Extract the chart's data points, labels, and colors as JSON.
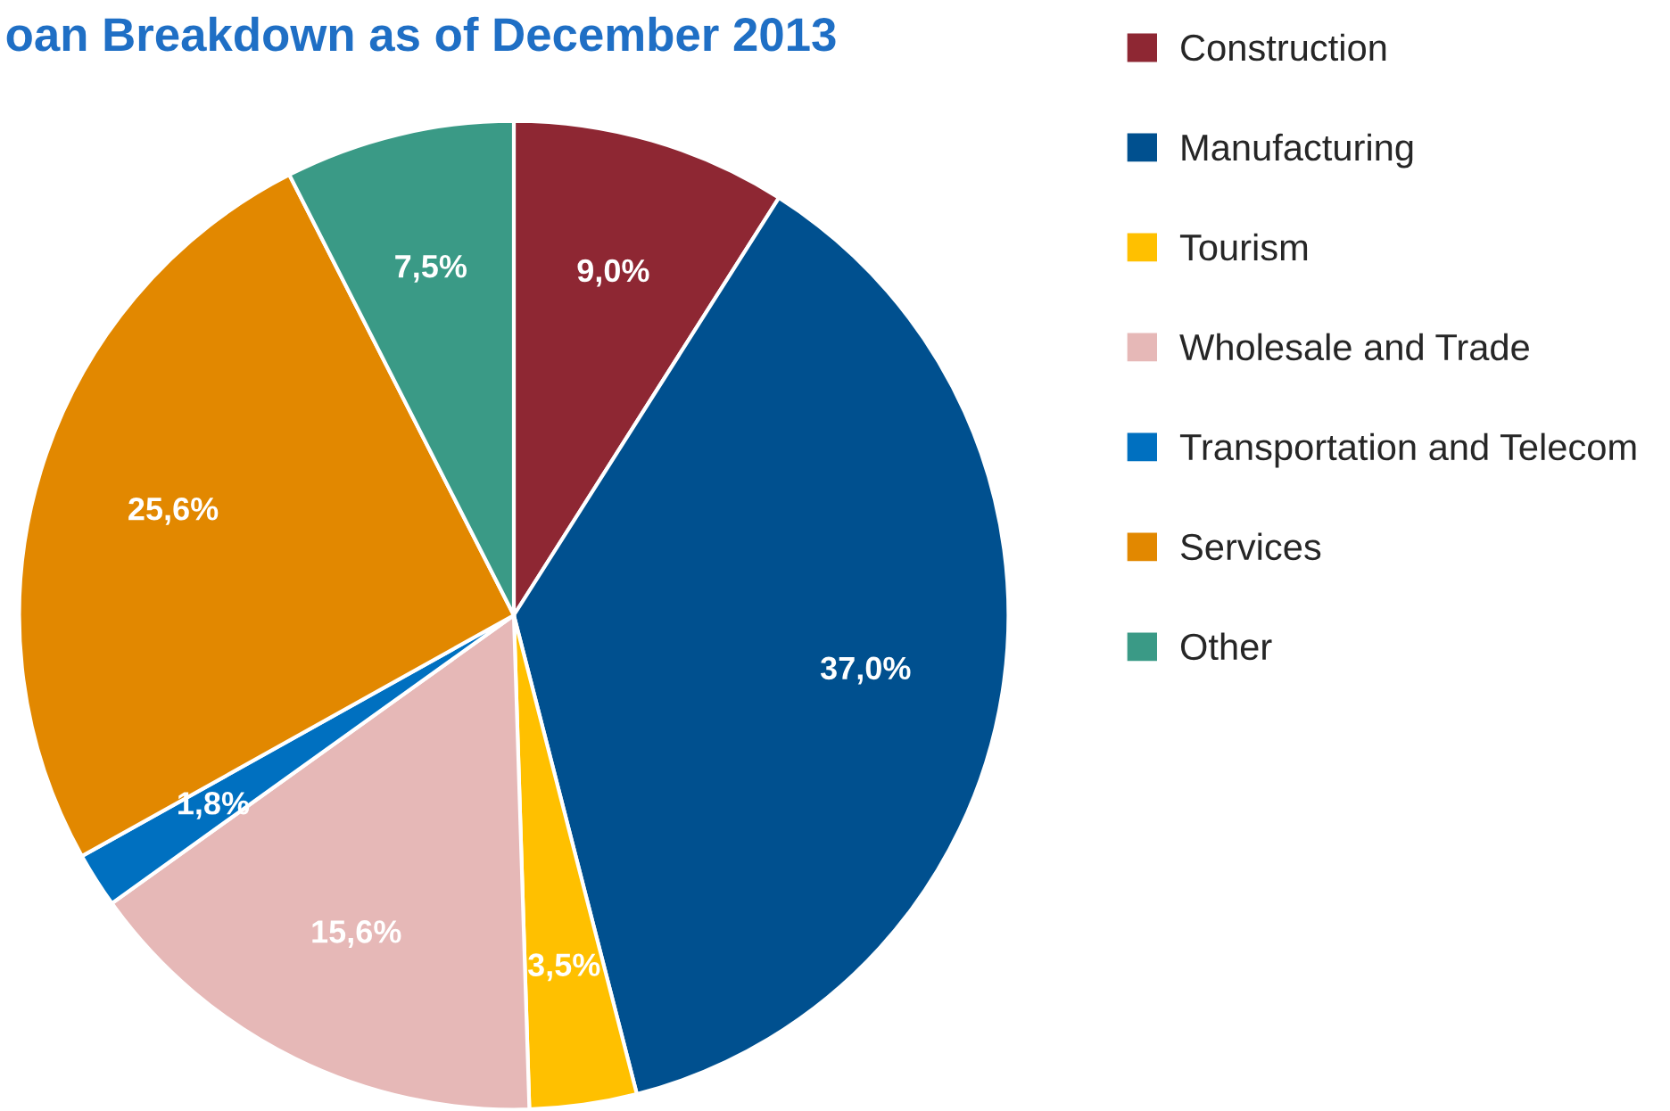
{
  "chart_data": {
    "type": "pie",
    "title": "oan Breakdown as of December 2013",
    "categories": [
      "Construction",
      "Manufacturing",
      "Tourism",
      "Wholesale and Trade",
      "Transportation and Telecom",
      "Services",
      "Other"
    ],
    "values": [
      9.0,
      37.0,
      3.5,
      15.6,
      1.8,
      25.6,
      7.5
    ],
    "value_labels": [
      "9,0%",
      "37,0%",
      "3,5%",
      "15,6%",
      "1,8%",
      "25,6%",
      "7,5%"
    ],
    "colors": [
      "#8e2733",
      "#00508f",
      "#ffc000",
      "#e6b8b7",
      "#0070c0",
      "#e28800",
      "#3a9a86"
    ],
    "legend": "right"
  }
}
